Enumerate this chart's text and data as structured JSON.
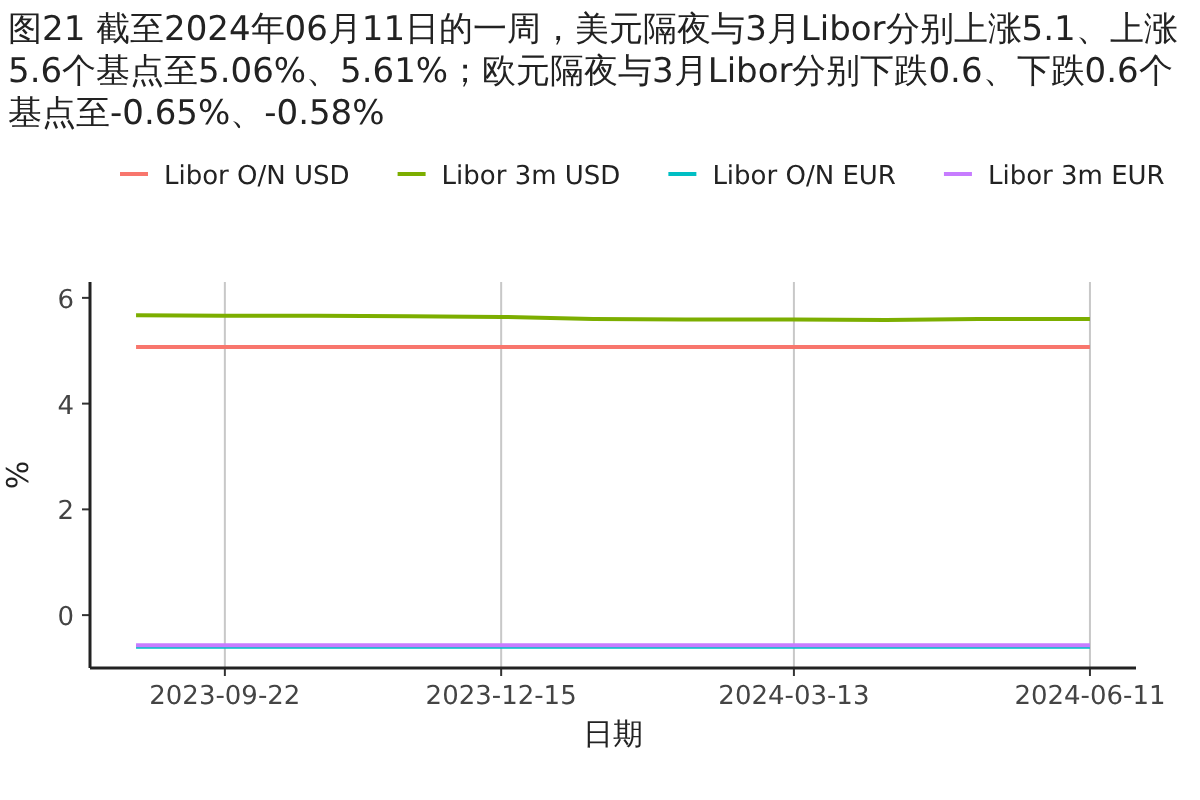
{
  "chart_data": {
    "type": "line",
    "title": "图21  截至2024年06月11日的一周，美元隔夜与3月Libor分别上涨5.1、上涨5.6个基点至5.06%、5.61%；欧元隔夜与3月Libor分别下跌0.6、下跌0.6个基点至-0.65%、-0.58%",
    "xlabel": "日期",
    "ylabel": "%",
    "x": [
      "2023-08-26",
      "2023-09-22",
      "2023-10-20",
      "2023-11-17",
      "2023-12-15",
      "2024-01-12",
      "2024-02-09",
      "2024-03-13",
      "2024-04-10",
      "2024-05-08",
      "2024-06-11"
    ],
    "series": [
      {
        "name": "Libor O/N USD",
        "color": "#f8766d",
        "values": [
          5.07,
          5.07,
          5.07,
          5.07,
          5.07,
          5.07,
          5.07,
          5.07,
          5.07,
          5.07,
          5.07
        ]
      },
      {
        "name": "Libor 3m USD",
        "color": "#7cae00",
        "values": [
          5.67,
          5.66,
          5.66,
          5.65,
          5.64,
          5.6,
          5.59,
          5.59,
          5.58,
          5.6,
          5.6
        ]
      },
      {
        "name": "Libor O/N EUR",
        "color": "#00bfc4",
        "values": [
          -0.6,
          -0.6,
          -0.6,
          -0.6,
          -0.6,
          -0.6,
          -0.6,
          -0.6,
          -0.6,
          -0.6,
          -0.6
        ]
      },
      {
        "name": "Libor 3m EUR",
        "color": "#c77cff",
        "values": [
          -0.57,
          -0.57,
          -0.57,
          -0.57,
          -0.57,
          -0.57,
          -0.57,
          -0.57,
          -0.57,
          -0.57,
          -0.57
        ]
      }
    ],
    "xlim": [
      "2023-08-12",
      "2024-06-25"
    ],
    "xticks": [
      "2023-09-22",
      "2023-12-15",
      "2024-03-13",
      "2024-06-11"
    ],
    "ylim": [
      -1,
      6.3
    ],
    "yticks": [
      0,
      2,
      4,
      6
    ],
    "grid": "x",
    "legend": "top",
    "marker": "none",
    "line_style": "solid"
  }
}
